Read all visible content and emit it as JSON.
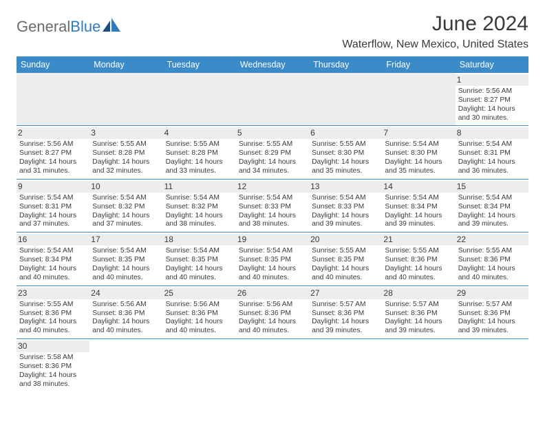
{
  "brand": {
    "part1": "General",
    "part2": "Blue"
  },
  "title": "June 2024",
  "location": "Waterflow, New Mexico, United States",
  "colors": {
    "header_bg": "#3b8bc8",
    "header_text": "#ffffff",
    "daynum_bg": "#ededed",
    "text": "#3a3a3a",
    "rule": "#3b8bc8"
  },
  "weekdays": [
    "Sunday",
    "Monday",
    "Tuesday",
    "Wednesday",
    "Thursday",
    "Friday",
    "Saturday"
  ],
  "weeks": [
    [
      {
        "blank": true
      },
      {
        "blank": true
      },
      {
        "blank": true
      },
      {
        "blank": true
      },
      {
        "blank": true
      },
      {
        "blank": true
      },
      {
        "n": "1",
        "sr": "Sunrise: 5:56 AM",
        "ss": "Sunset: 8:27 PM",
        "d1": "Daylight: 14 hours",
        "d2": "and 30 minutes."
      }
    ],
    [
      {
        "n": "2",
        "sr": "Sunrise: 5:56 AM",
        "ss": "Sunset: 8:27 PM",
        "d1": "Daylight: 14 hours",
        "d2": "and 31 minutes."
      },
      {
        "n": "3",
        "sr": "Sunrise: 5:55 AM",
        "ss": "Sunset: 8:28 PM",
        "d1": "Daylight: 14 hours",
        "d2": "and 32 minutes."
      },
      {
        "n": "4",
        "sr": "Sunrise: 5:55 AM",
        "ss": "Sunset: 8:28 PM",
        "d1": "Daylight: 14 hours",
        "d2": "and 33 minutes."
      },
      {
        "n": "5",
        "sr": "Sunrise: 5:55 AM",
        "ss": "Sunset: 8:29 PM",
        "d1": "Daylight: 14 hours",
        "d2": "and 34 minutes."
      },
      {
        "n": "6",
        "sr": "Sunrise: 5:55 AM",
        "ss": "Sunset: 8:30 PM",
        "d1": "Daylight: 14 hours",
        "d2": "and 35 minutes."
      },
      {
        "n": "7",
        "sr": "Sunrise: 5:54 AM",
        "ss": "Sunset: 8:30 PM",
        "d1": "Daylight: 14 hours",
        "d2": "and 35 minutes."
      },
      {
        "n": "8",
        "sr": "Sunrise: 5:54 AM",
        "ss": "Sunset: 8:31 PM",
        "d1": "Daylight: 14 hours",
        "d2": "and 36 minutes."
      }
    ],
    [
      {
        "n": "9",
        "sr": "Sunrise: 5:54 AM",
        "ss": "Sunset: 8:31 PM",
        "d1": "Daylight: 14 hours",
        "d2": "and 37 minutes."
      },
      {
        "n": "10",
        "sr": "Sunrise: 5:54 AM",
        "ss": "Sunset: 8:32 PM",
        "d1": "Daylight: 14 hours",
        "d2": "and 37 minutes."
      },
      {
        "n": "11",
        "sr": "Sunrise: 5:54 AM",
        "ss": "Sunset: 8:32 PM",
        "d1": "Daylight: 14 hours",
        "d2": "and 38 minutes."
      },
      {
        "n": "12",
        "sr": "Sunrise: 5:54 AM",
        "ss": "Sunset: 8:33 PM",
        "d1": "Daylight: 14 hours",
        "d2": "and 38 minutes."
      },
      {
        "n": "13",
        "sr": "Sunrise: 5:54 AM",
        "ss": "Sunset: 8:33 PM",
        "d1": "Daylight: 14 hours",
        "d2": "and 39 minutes."
      },
      {
        "n": "14",
        "sr": "Sunrise: 5:54 AM",
        "ss": "Sunset: 8:34 PM",
        "d1": "Daylight: 14 hours",
        "d2": "and 39 minutes."
      },
      {
        "n": "15",
        "sr": "Sunrise: 5:54 AM",
        "ss": "Sunset: 8:34 PM",
        "d1": "Daylight: 14 hours",
        "d2": "and 39 minutes."
      }
    ],
    [
      {
        "n": "16",
        "sr": "Sunrise: 5:54 AM",
        "ss": "Sunset: 8:34 PM",
        "d1": "Daylight: 14 hours",
        "d2": "and 40 minutes."
      },
      {
        "n": "17",
        "sr": "Sunrise: 5:54 AM",
        "ss": "Sunset: 8:35 PM",
        "d1": "Daylight: 14 hours",
        "d2": "and 40 minutes."
      },
      {
        "n": "18",
        "sr": "Sunrise: 5:54 AM",
        "ss": "Sunset: 8:35 PM",
        "d1": "Daylight: 14 hours",
        "d2": "and 40 minutes."
      },
      {
        "n": "19",
        "sr": "Sunrise: 5:54 AM",
        "ss": "Sunset: 8:35 PM",
        "d1": "Daylight: 14 hours",
        "d2": "and 40 minutes."
      },
      {
        "n": "20",
        "sr": "Sunrise: 5:55 AM",
        "ss": "Sunset: 8:35 PM",
        "d1": "Daylight: 14 hours",
        "d2": "and 40 minutes."
      },
      {
        "n": "21",
        "sr": "Sunrise: 5:55 AM",
        "ss": "Sunset: 8:36 PM",
        "d1": "Daylight: 14 hours",
        "d2": "and 40 minutes."
      },
      {
        "n": "22",
        "sr": "Sunrise: 5:55 AM",
        "ss": "Sunset: 8:36 PM",
        "d1": "Daylight: 14 hours",
        "d2": "and 40 minutes."
      }
    ],
    [
      {
        "n": "23",
        "sr": "Sunrise: 5:55 AM",
        "ss": "Sunset: 8:36 PM",
        "d1": "Daylight: 14 hours",
        "d2": "and 40 minutes."
      },
      {
        "n": "24",
        "sr": "Sunrise: 5:56 AM",
        "ss": "Sunset: 8:36 PM",
        "d1": "Daylight: 14 hours",
        "d2": "and 40 minutes."
      },
      {
        "n": "25",
        "sr": "Sunrise: 5:56 AM",
        "ss": "Sunset: 8:36 PM",
        "d1": "Daylight: 14 hours",
        "d2": "and 40 minutes."
      },
      {
        "n": "26",
        "sr": "Sunrise: 5:56 AM",
        "ss": "Sunset: 8:36 PM",
        "d1": "Daylight: 14 hours",
        "d2": "and 40 minutes."
      },
      {
        "n": "27",
        "sr": "Sunrise: 5:57 AM",
        "ss": "Sunset: 8:36 PM",
        "d1": "Daylight: 14 hours",
        "d2": "and 39 minutes."
      },
      {
        "n": "28",
        "sr": "Sunrise: 5:57 AM",
        "ss": "Sunset: 8:36 PM",
        "d1": "Daylight: 14 hours",
        "d2": "and 39 minutes."
      },
      {
        "n": "29",
        "sr": "Sunrise: 5:57 AM",
        "ss": "Sunset: 8:36 PM",
        "d1": "Daylight: 14 hours",
        "d2": "and 39 minutes."
      }
    ],
    [
      {
        "n": "30",
        "sr": "Sunrise: 5:58 AM",
        "ss": "Sunset: 8:36 PM",
        "d1": "Daylight: 14 hours",
        "d2": "and 38 minutes."
      },
      {
        "blank": true
      },
      {
        "blank": true
      },
      {
        "blank": true
      },
      {
        "blank": true
      },
      {
        "blank": true
      },
      {
        "blank": true
      }
    ]
  ]
}
